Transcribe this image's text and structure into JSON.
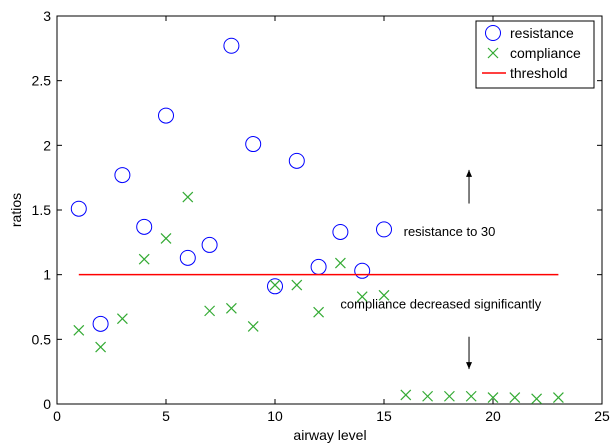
{
  "chart_data": {
    "type": "scatter",
    "xlabel": "airway level",
    "ylabel": "ratios",
    "xlim": [
      0,
      25
    ],
    "ylim": [
      0,
      3
    ],
    "xticks": [
      0,
      5,
      10,
      15,
      20,
      25
    ],
    "yticks": [
      0,
      0.5,
      1,
      1.5,
      2,
      2.5,
      3
    ],
    "xtick_labels": [
      "0",
      "5",
      "10",
      "15",
      "20",
      "25"
    ],
    "ytick_labels": [
      "0",
      "0.5",
      "1",
      "1.5",
      "2",
      "2.5",
      "3"
    ],
    "grid": false,
    "legend_position": "top-right",
    "series": [
      {
        "name": "resistance",
        "marker": "circle",
        "color": "#0000ff",
        "x": [
          1,
          2,
          3,
          4,
          5,
          6,
          7,
          8,
          9,
          10,
          11,
          12,
          13,
          14,
          15
        ],
        "y": [
          1.51,
          0.62,
          1.77,
          1.37,
          2.23,
          1.13,
          1.23,
          2.77,
          2.01,
          0.91,
          1.88,
          1.06,
          1.33,
          1.03,
          1.35
        ]
      },
      {
        "name": "compliance",
        "marker": "x",
        "color": "#33aa33",
        "x": [
          1,
          2,
          3,
          4,
          5,
          6,
          7,
          8,
          9,
          10,
          11,
          12,
          13,
          14,
          15,
          16,
          17,
          18,
          19,
          20,
          21,
          22,
          23
        ],
        "y": [
          0.57,
          0.44,
          0.66,
          1.12,
          1.28,
          1.6,
          0.72,
          0.74,
          0.6,
          0.92,
          0.92,
          0.71,
          1.09,
          0.83,
          0.84,
          0.07,
          0.06,
          0.06,
          0.06,
          0.05,
          0.05,
          0.04,
          0.05
        ]
      },
      {
        "name": "threshold",
        "marker": "line",
        "color": "#ff0000",
        "x": [
          1,
          23
        ],
        "y": [
          1,
          1
        ]
      }
    ],
    "annotations": [
      {
        "text": "resistance to 30",
        "x": 15.9,
        "y": 1.3,
        "arrow_from": [
          18.9,
          1.55
        ],
        "arrow_to": [
          18.9,
          1.81
        ]
      },
      {
        "text": "compliance decreased significantly",
        "x": 13,
        "y": 0.74,
        "arrow_from": [
          18.9,
          0.52
        ],
        "arrow_to": [
          18.9,
          0.27
        ]
      }
    ]
  }
}
